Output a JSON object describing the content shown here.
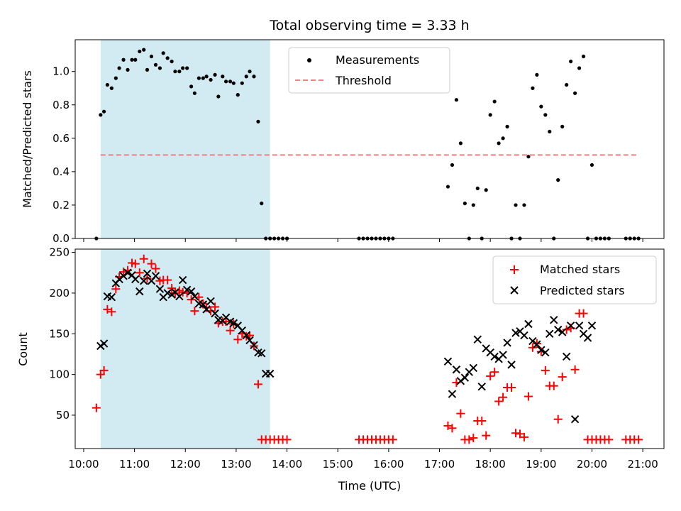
{
  "colors": {
    "span": "#add8e6",
    "measurements": "#000000",
    "threshold": "#f08080",
    "matched": "#ff0000",
    "predicted": "#000000"
  },
  "chart_data": [
    {
      "type": "scatter",
      "title": "Total observing time = 3.33 h",
      "xlabel": "",
      "ylabel": "Matched/Predicted stars",
      "xlim": [
        "09:50",
        "21:25"
      ],
      "ylim": [
        0,
        1.19
      ],
      "yticks": [
        0.0,
        0.2,
        0.4,
        0.6,
        0.8,
        1.0
      ],
      "ytick_labels": [
        "0.0",
        "0.2",
        "0.4",
        "0.6",
        "0.8",
        "1.0"
      ],
      "grid": false,
      "legend_position": "top-center",
      "observing_span": [
        "10:20",
        "13:40"
      ],
      "series": [
        {
          "name": "Measurements",
          "kind": "scatter",
          "x": [
            "10:15",
            "10:20",
            "10:24",
            "10:28",
            "10:33",
            "10:38",
            "10:42",
            "10:47",
            "10:52",
            "10:57",
            "11:01",
            "11:06",
            "11:11",
            "11:15",
            "11:20",
            "11:25",
            "11:30",
            "11:34",
            "11:39",
            "11:44",
            "11:48",
            "11:53",
            "11:57",
            "12:02",
            "12:07",
            "12:11",
            "12:16",
            "12:21",
            "12:25",
            "12:30",
            "12:35",
            "12:39",
            "12:44",
            "12:48",
            "12:53",
            "12:57",
            "13:02",
            "13:07",
            "13:12",
            "13:16",
            "13:21",
            "13:26",
            "13:30",
            "13:35",
            "13:40",
            "13:45",
            "13:50",
            "13:55",
            "14:00",
            "15:25",
            "15:30",
            "15:35",
            "15:40",
            "15:45",
            "15:50",
            "15:55",
            "16:00",
            "16:05",
            "17:10",
            "17:15",
            "17:20",
            "17:25",
            "17:30",
            "17:35",
            "17:40",
            "17:45",
            "17:50",
            "17:55",
            "18:00",
            "18:05",
            "18:10",
            "18:15",
            "18:20",
            "18:25",
            "18:30",
            "18:35",
            "18:40",
            "18:45",
            "18:50",
            "18:55",
            "19:00",
            "19:05",
            "19:10",
            "19:15",
            "19:20",
            "19:25",
            "19:30",
            "19:35",
            "19:40",
            "19:45",
            "19:50",
            "19:55",
            "20:00",
            "20:05",
            "20:10",
            "20:15",
            "20:20",
            "20:40",
            "20:45",
            "20:50",
            "20:55"
          ],
          "y": [
            0.0,
            0.74,
            0.76,
            0.92,
            0.9,
            0.96,
            1.02,
            1.07,
            1.01,
            1.07,
            1.07,
            1.12,
            1.13,
            1.01,
            1.09,
            1.04,
            1.02,
            1.11,
            1.08,
            1.06,
            1.0,
            1.0,
            1.02,
            1.02,
            0.91,
            0.87,
            0.96,
            0.96,
            0.97,
            0.95,
            0.98,
            0.85,
            0.97,
            0.94,
            0.94,
            0.93,
            0.86,
            0.93,
            0.97,
            1.0,
            0.97,
            0.7,
            0.21,
            0.0,
            0.0,
            0.0,
            0.0,
            0.0,
            0.0,
            0.0,
            0.0,
            0.0,
            0.0,
            0.0,
            0.0,
            0.0,
            0.0,
            0.0,
            0.31,
            0.44,
            0.83,
            0.57,
            0.21,
            0.0,
            0.2,
            0.3,
            0.0,
            0.29,
            0.74,
            0.82,
            0.57,
            0.6,
            0.67,
            0.0,
            0.2,
            0.0,
            0.2,
            0.49,
            0.9,
            0.98,
            0.79,
            0.74,
            0.64,
            0.0,
            0.35,
            0.67,
            0.92,
            1.06,
            0.87,
            1.02,
            1.09,
            0.0,
            0.44,
            0.0,
            0.0,
            0.0,
            0.0,
            0.0,
            0.0,
            0.0,
            0.0
          ]
        },
        {
          "name": "Threshold",
          "kind": "dashed-line",
          "x": [
            "10:20",
            "20:55"
          ],
          "y": [
            0.5,
            0.5
          ]
        }
      ]
    },
    {
      "type": "scatter",
      "title": "",
      "xlabel": "Time (UTC)",
      "ylabel": "Count",
      "xlim": [
        "09:50",
        "21:25"
      ],
      "ylim": [
        9,
        254
      ],
      "xtick_labels": [
        "10:00",
        "11:00",
        "12:00",
        "13:00",
        "14:00",
        "15:00",
        "16:00",
        "17:00",
        "18:00",
        "19:00",
        "20:00",
        "21:00"
      ],
      "yticks": [
        50,
        100,
        150,
        200,
        250
      ],
      "ytick_labels": [
        "50",
        "100",
        "150",
        "200",
        "250"
      ],
      "grid": false,
      "legend_position": "top-right",
      "observing_span": [
        "10:20",
        "13:40"
      ],
      "series": [
        {
          "name": "Matched stars",
          "marker": "+",
          "x": [
            "10:15",
            "10:20",
            "10:24",
            "10:28",
            "10:33",
            "10:38",
            "10:42",
            "10:47",
            "10:52",
            "10:57",
            "11:01",
            "11:06",
            "11:11",
            "11:15",
            "11:20",
            "11:25",
            "11:30",
            "11:34",
            "11:39",
            "11:44",
            "11:48",
            "11:53",
            "11:57",
            "12:02",
            "12:07",
            "12:11",
            "12:16",
            "12:21",
            "12:25",
            "12:30",
            "12:35",
            "12:39",
            "12:44",
            "12:48",
            "12:53",
            "12:57",
            "13:02",
            "13:07",
            "13:12",
            "13:16",
            "13:21",
            "13:26",
            "13:30",
            "13:35",
            "13:40",
            "13:45",
            "13:50",
            "13:55",
            "14:00",
            "15:25",
            "15:30",
            "15:35",
            "15:40",
            "15:45",
            "15:50",
            "15:55",
            "16:00",
            "16:05",
            "17:10",
            "17:15",
            "17:20",
            "17:25",
            "17:30",
            "17:35",
            "17:40",
            "17:45",
            "17:50",
            "17:55",
            "18:00",
            "18:05",
            "18:10",
            "18:15",
            "18:20",
            "18:25",
            "18:30",
            "18:35",
            "18:40",
            "18:45",
            "18:50",
            "18:55",
            "19:00",
            "19:05",
            "19:10",
            "19:15",
            "19:20",
            "19:25",
            "19:30",
            "19:35",
            "19:40",
            "19:45",
            "19:50",
            "19:55",
            "20:00",
            "20:05",
            "20:10",
            "20:15",
            "20:20",
            "20:40",
            "20:45",
            "20:50",
            "20:55"
          ],
          "y": [
            59,
            100,
            105,
            180,
            177,
            205,
            220,
            226,
            228,
            237,
            236,
            225,
            242,
            218,
            236,
            230,
            215,
            216,
            216,
            206,
            200,
            203,
            201,
            200,
            192,
            178,
            195,
            187,
            182,
            178,
            183,
            163,
            165,
            165,
            154,
            162,
            143,
            150,
            147,
            148,
            135,
            88,
            20,
            20,
            20,
            20,
            20,
            20,
            20,
            20,
            20,
            20,
            20,
            20,
            20,
            20,
            20,
            20,
            37,
            34,
            90,
            52,
            20,
            20,
            22,
            43,
            43,
            25,
            98,
            103,
            67,
            72,
            84,
            84,
            28,
            27,
            23,
            73,
            133,
            138,
            128,
            105,
            86,
            86,
            45,
            97,
            155,
            157,
            106,
            175,
            175,
            20,
            20,
            20,
            20,
            20,
            20,
            20,
            20,
            20,
            20
          ]
        },
        {
          "name": "Predicted stars",
          "marker": "x",
          "x": [
            "10:20",
            "10:24",
            "10:28",
            "10:33",
            "10:38",
            "10:42",
            "10:47",
            "10:52",
            "10:57",
            "11:01",
            "11:06",
            "11:11",
            "11:15",
            "11:20",
            "11:25",
            "11:30",
            "11:34",
            "11:39",
            "11:44",
            "11:48",
            "11:53",
            "11:57",
            "12:02",
            "12:07",
            "12:11",
            "12:16",
            "12:21",
            "12:25",
            "12:30",
            "12:35",
            "12:39",
            "12:44",
            "12:48",
            "12:53",
            "12:57",
            "13:02",
            "13:07",
            "13:12",
            "13:16",
            "13:21",
            "13:26",
            "13:30",
            "13:35",
            "13:40",
            "17:10",
            "17:15",
            "17:20",
            "17:25",
            "17:30",
            "17:35",
            "17:40",
            "17:45",
            "17:50",
            "17:55",
            "18:00",
            "18:05",
            "18:10",
            "18:15",
            "18:20",
            "18:25",
            "18:30",
            "18:35",
            "18:40",
            "18:45",
            "18:50",
            "18:55",
            "19:00",
            "19:05",
            "19:10",
            "19:15",
            "19:20",
            "19:25",
            "19:30",
            "19:35",
            "19:40",
            "19:45",
            "19:50",
            "19:55",
            "20:00"
          ],
          "y": [
            135,
            138,
            196,
            195,
            212,
            217,
            221,
            225,
            222,
            217,
            202,
            215,
            224,
            215,
            221,
            205,
            195,
            200,
            198,
            201,
            196,
            216,
            204,
            202,
            196,
            187,
            186,
            180,
            190,
            175,
            167,
            166,
            170,
            165,
            163,
            160,
            154,
            148,
            142,
            136,
            127,
            126,
            101,
            101,
            116,
            76,
            106,
            92,
            96,
            103,
            108,
            143,
            85,
            132,
            127,
            122,
            119,
            124,
            139,
            112,
            151,
            153,
            148,
            162,
            141,
            137,
            130,
            127,
            150,
            167,
            155,
            152,
            122,
            160,
            45,
            160,
            150,
            145,
            160
          ]
        }
      ]
    }
  ]
}
